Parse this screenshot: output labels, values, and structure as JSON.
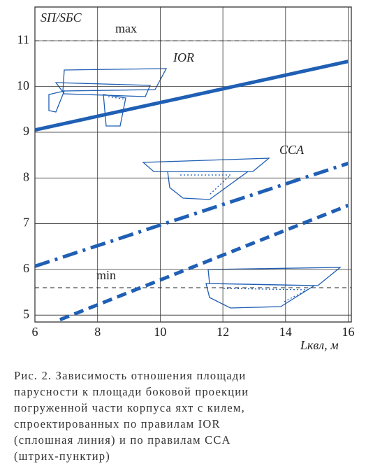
{
  "chart_data": {
    "type": "line",
    "y_label": "SП/SБС",
    "x_label": "Lквл, м",
    "xlim": [
      6,
      16.1
    ],
    "xticks": [
      6,
      8,
      10,
      12,
      14,
      16
    ],
    "ylim": [
      4.85,
      11.74
    ],
    "yticks": [
      5,
      6,
      7,
      8,
      9,
      10,
      11
    ],
    "grid": true,
    "series": [
      {
        "name": "IOR",
        "color": "#1f5fb4",
        "style": "solid",
        "x": [
          6,
          16
        ],
        "values": [
          9.05,
          10.55
        ]
      },
      {
        "name": "CCA",
        "color": "#1f5fb4",
        "style": "dashdot",
        "x": [
          6,
          16
        ],
        "values": [
          6.07,
          8.32
        ]
      },
      {
        "color": "#1f5fb4",
        "style": "dashed",
        "x": [
          6.8,
          16
        ],
        "values": [
          4.9,
          7.4
        ]
      }
    ],
    "reference_lines": [
      {
        "value": 11,
        "label": "max"
      },
      {
        "value": 5.6,
        "label": "min"
      }
    ],
    "caption": [
      "Рис. 2. Зависимость отношения площади",
      "парусности к площади боковой проекции",
      "погруженной части корпуса яхт с килем,",
      "спроектированных по правилам IOR",
      "(сплошная линия) и по правилам CCA",
      "(штрих-пунктир)"
    ]
  }
}
